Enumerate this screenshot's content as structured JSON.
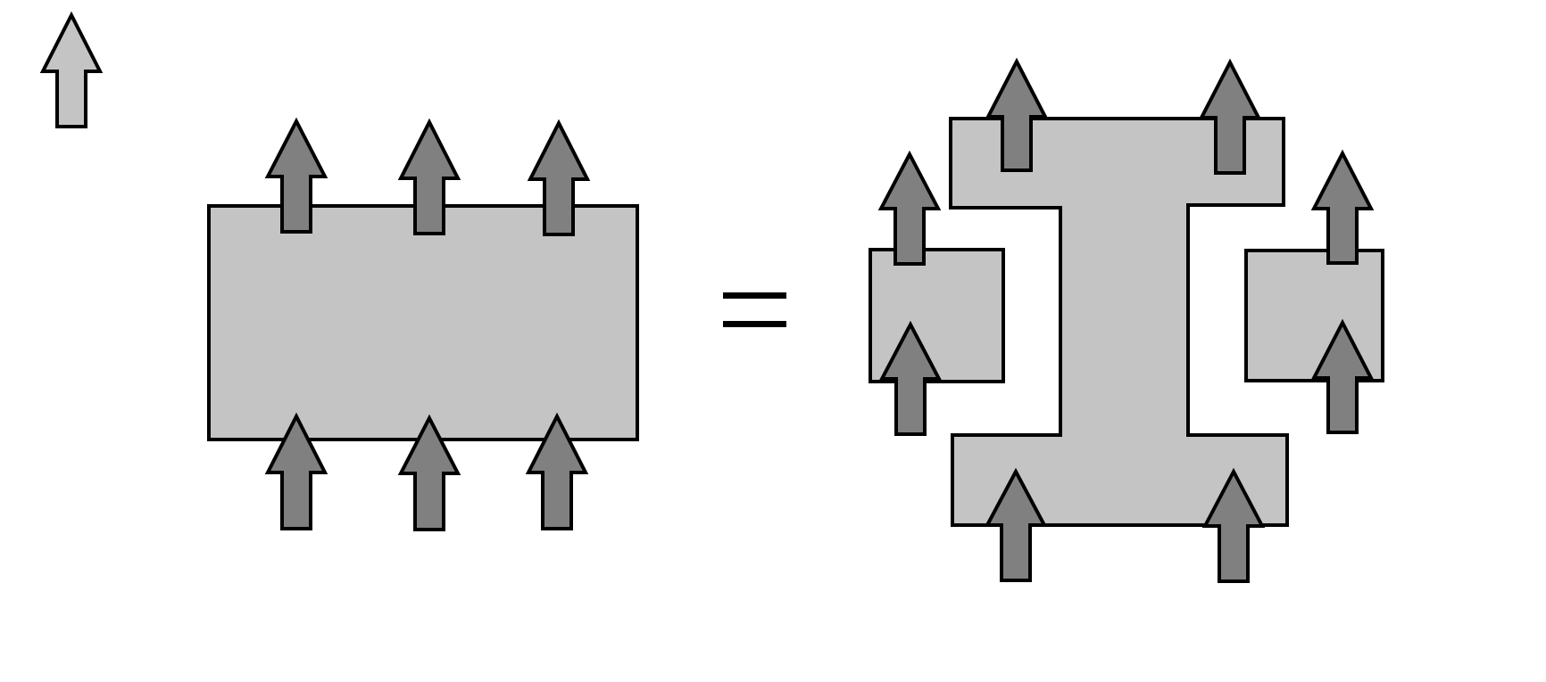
{
  "colors": {
    "background": "#ffffff",
    "outline": "#000000",
    "box_fill": "#c4c4c4",
    "legend_arrow_fill": "#c4c4c4",
    "arrow_fill": "#808080"
  },
  "icons": {
    "arrow": "up-arrow-icon",
    "equals": "equals-sign"
  },
  "lhs": {
    "top_arrow_count": 3,
    "bottom_arrow_count": 3
  },
  "rhs": {
    "central_piece": "i-beam-shape",
    "side_boxes": 2,
    "arrow_count": 8
  }
}
